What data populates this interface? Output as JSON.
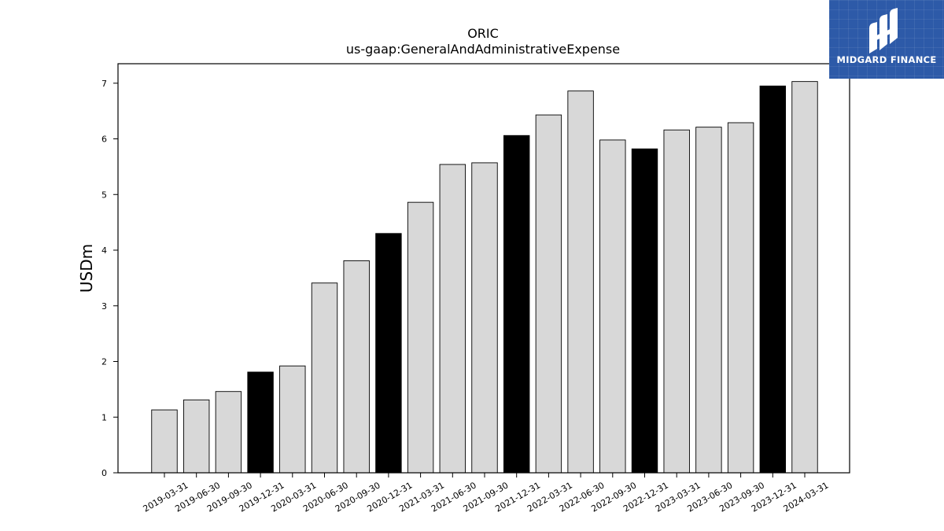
{
  "chart_data": {
    "type": "bar",
    "title": "ORIC",
    "subtitle": "us-gaap:GeneralAndAdministrativeExpense",
    "xlabel": "",
    "ylabel": "USDm",
    "ylim": [
      0,
      7.35
    ],
    "yticks": [
      0,
      1,
      2,
      3,
      4,
      5,
      6,
      7
    ],
    "grid": false,
    "categories": [
      "2019-03-31",
      "2019-06-30",
      "2019-09-30",
      "2019-12-31",
      "2020-03-31",
      "2020-06-30",
      "2020-09-30",
      "2020-12-31",
      "2021-03-31",
      "2021-06-30",
      "2021-09-30",
      "2021-12-31",
      "2022-03-31",
      "2022-06-30",
      "2022-09-30",
      "2022-12-31",
      "2023-03-31",
      "2023-06-30",
      "2023-09-30",
      "2023-12-31",
      "2024-03-31"
    ],
    "values": [
      1.13,
      1.31,
      1.46,
      1.81,
      1.92,
      3.41,
      3.81,
      4.3,
      4.86,
      5.54,
      5.57,
      6.06,
      6.43,
      6.86,
      5.98,
      5.82,
      6.16,
      6.21,
      6.29,
      6.95,
      7.03
    ],
    "highlight": [
      false,
      false,
      false,
      true,
      false,
      false,
      false,
      true,
      false,
      false,
      false,
      true,
      false,
      false,
      false,
      true,
      false,
      false,
      false,
      true,
      false
    ],
    "colors": {
      "bar": "#d8d8d8",
      "highlight": "#000000",
      "edge": "#000000"
    }
  },
  "logo": {
    "text": "MIDGARD FINANCE",
    "background": "#2d5aa8"
  }
}
